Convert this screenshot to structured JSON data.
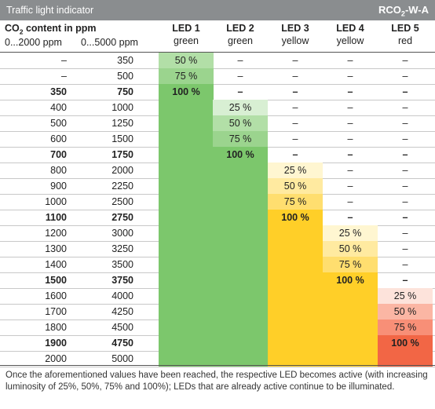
{
  "title_left": "Traffic light indicator",
  "title_right_prefix": "RCO",
  "title_right_sub": "2",
  "title_right_suffix": "-W-A",
  "header": {
    "co2_prefix": "CO",
    "co2_sub": "2",
    "co2_suffix": " content in ppm",
    "range1": "0...2000 ppm",
    "range2": "0...5000 ppm"
  },
  "leds": [
    {
      "name": "LED 1",
      "color_label": "green"
    },
    {
      "name": "LED 2",
      "color_label": "green"
    },
    {
      "name": "LED 3",
      "color_label": "yellow"
    },
    {
      "name": "LED 4",
      "color_label": "yellow"
    },
    {
      "name": "LED 5",
      "color_label": "red"
    }
  ],
  "colors": {
    "green": [
      "#d8efd3",
      "#b2dfa7",
      "#9bd48e",
      "#7cc76c"
    ],
    "yellow": [
      "#fff6d1",
      "#ffeaa0",
      "#ffde6f",
      "#ffcf28"
    ],
    "red": [
      "#fde3db",
      "#fbb6a4",
      "#f88f77",
      "#f26645"
    ]
  },
  "rows": [
    {
      "a": "–",
      "b": "350",
      "bold": false,
      "cells": [
        "50 %",
        "–",
        "–",
        "–",
        "–"
      ],
      "levels": [
        1,
        0,
        0,
        0,
        0
      ]
    },
    {
      "a": "–",
      "b": "500",
      "bold": false,
      "cells": [
        "75 %",
        "–",
        "–",
        "–",
        "–"
      ],
      "levels": [
        2,
        0,
        0,
        0,
        0
      ]
    },
    {
      "a": "350",
      "b": "750",
      "bold": true,
      "cells": [
        "100 %",
        "–",
        "–",
        "–",
        "–"
      ],
      "levels": [
        3,
        0,
        0,
        0,
        0
      ]
    },
    {
      "a": "400",
      "b": "1000",
      "bold": false,
      "cells": [
        "",
        "25 %",
        "–",
        "–",
        "–"
      ],
      "levels": [
        3,
        0,
        0,
        0,
        0
      ]
    },
    {
      "a": "500",
      "b": "1250",
      "bold": false,
      "cells": [
        "",
        "50 %",
        "–",
        "–",
        "–"
      ],
      "levels": [
        3,
        1,
        0,
        0,
        0
      ]
    },
    {
      "a": "600",
      "b": "1500",
      "bold": false,
      "cells": [
        "",
        "75 %",
        "–",
        "–",
        "–"
      ],
      "levels": [
        3,
        2,
        0,
        0,
        0
      ]
    },
    {
      "a": "700",
      "b": "1750",
      "bold": true,
      "cells": [
        "",
        "100 %",
        "–",
        "–",
        "–"
      ],
      "levels": [
        3,
        3,
        0,
        0,
        0
      ]
    },
    {
      "a": "800",
      "b": "2000",
      "bold": false,
      "cells": [
        "",
        "",
        "25 %",
        "–",
        "–"
      ],
      "levels": [
        3,
        3,
        0,
        0,
        0
      ]
    },
    {
      "a": "900",
      "b": "2250",
      "bold": false,
      "cells": [
        "",
        "",
        "50 %",
        "–",
        "–"
      ],
      "levels": [
        3,
        3,
        1,
        0,
        0
      ]
    },
    {
      "a": "1000",
      "b": "2500",
      "bold": false,
      "cells": [
        "",
        "",
        "75 %",
        "–",
        "–"
      ],
      "levels": [
        3,
        3,
        2,
        0,
        0
      ]
    },
    {
      "a": "1100",
      "b": "2750",
      "bold": true,
      "cells": [
        "",
        "",
        "100 %",
        "–",
        "–"
      ],
      "levels": [
        3,
        3,
        3,
        0,
        0
      ]
    },
    {
      "a": "1200",
      "b": "3000",
      "bold": false,
      "cells": [
        "",
        "",
        "",
        "25 %",
        "–"
      ],
      "levels": [
        3,
        3,
        3,
        0,
        0
      ]
    },
    {
      "a": "1300",
      "b": "3250",
      "bold": false,
      "cells": [
        "",
        "",
        "",
        "50 %",
        "–"
      ],
      "levels": [
        3,
        3,
        3,
        1,
        0
      ]
    },
    {
      "a": "1400",
      "b": "3500",
      "bold": false,
      "cells": [
        "",
        "",
        "",
        "75 %",
        "–"
      ],
      "levels": [
        3,
        3,
        3,
        2,
        0
      ]
    },
    {
      "a": "1500",
      "b": "3750",
      "bold": true,
      "cells": [
        "",
        "",
        "",
        "100 %",
        "–"
      ],
      "levels": [
        3,
        3,
        3,
        3,
        0
      ]
    },
    {
      "a": "1600",
      "b": "4000",
      "bold": false,
      "cells": [
        "",
        "",
        "",
        "",
        "25 %"
      ],
      "levels": [
        3,
        3,
        3,
        3,
        0
      ]
    },
    {
      "a": "1700",
      "b": "4250",
      "bold": false,
      "cells": [
        "",
        "",
        "",
        "",
        "50 %"
      ],
      "levels": [
        3,
        3,
        3,
        3,
        1
      ]
    },
    {
      "a": "1800",
      "b": "4500",
      "bold": false,
      "cells": [
        "",
        "",
        "",
        "",
        "75 %"
      ],
      "levels": [
        3,
        3,
        3,
        3,
        2
      ]
    },
    {
      "a": "1900",
      "b": "4750",
      "bold": true,
      "cells": [
        "",
        "",
        "",
        "",
        "100 %"
      ],
      "levels": [
        3,
        3,
        3,
        3,
        3
      ]
    },
    {
      "a": "2000",
      "b": "5000",
      "bold": false,
      "cells": [
        "",
        "",
        "",
        "",
        ""
      ],
      "levels": [
        3,
        3,
        3,
        3,
        3
      ]
    }
  ],
  "footer_text": "Once the aforementioned values have been reached, the respective LED becomes active (with increasing luminosity of 25%, 50%, 75% and 100%); LEDs that are already active continue to be illuminated."
}
